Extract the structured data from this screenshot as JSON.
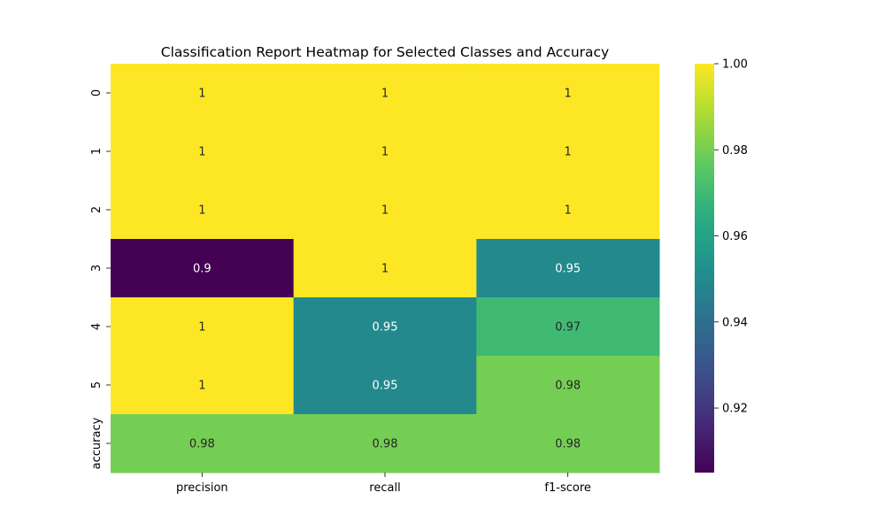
{
  "chart_data": {
    "type": "heatmap",
    "title": "Classification Report Heatmap for Selected Classes and Accuracy",
    "xlabel": "",
    "ylabel": "",
    "x_categories": [
      "precision",
      "recall",
      "f1-score"
    ],
    "y_categories": [
      "0",
      "1",
      "2",
      "3",
      "4",
      "5",
      "accuracy"
    ],
    "values": [
      [
        1,
        1,
        1
      ],
      [
        1,
        1,
        1
      ],
      [
        1,
        1,
        1
      ],
      [
        0.9,
        1,
        0.95
      ],
      [
        1,
        0.95,
        0.97
      ],
      [
        1,
        0.95,
        0.98
      ],
      [
        0.98,
        0.98,
        0.98
      ]
    ],
    "cell_labels": [
      [
        "1",
        "1",
        "1"
      ],
      [
        "1",
        "1",
        "1"
      ],
      [
        "1",
        "1",
        "1"
      ],
      [
        "0.9",
        "1",
        "0.95"
      ],
      [
        "1",
        "0.95",
        "0.97"
      ],
      [
        "1",
        "0.95",
        "0.98"
      ],
      [
        "0.98",
        "0.98",
        "0.98"
      ]
    ],
    "colormap": "viridis",
    "colorbar": {
      "min": 0.905,
      "max": 1.0,
      "ticks": [
        0.92,
        0.94,
        0.96,
        0.98,
        1.0
      ],
      "tick_labels": [
        "0.92",
        "0.94",
        "0.96",
        "0.98",
        "1.00"
      ]
    },
    "grid": false,
    "legend": "colorbar-right"
  }
}
